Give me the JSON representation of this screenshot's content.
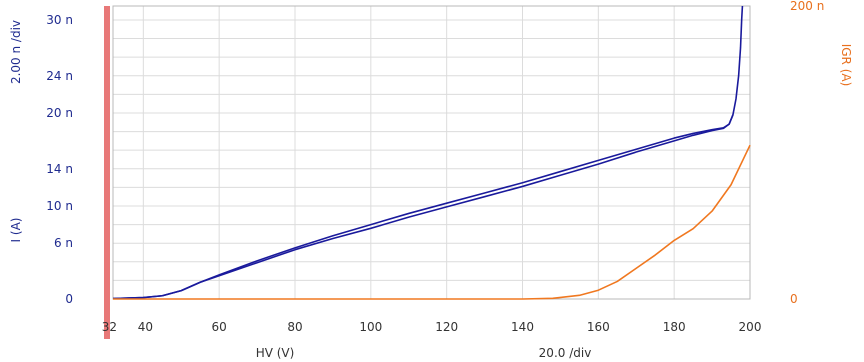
{
  "chart_data": {
    "type": "line",
    "title": "",
    "xlabel": "HV (V)",
    "x_div_label": "20.0  /div",
    "xlim": [
      32,
      200
    ],
    "x_ticks": [
      32,
      40,
      60,
      80,
      100,
      120,
      140,
      160,
      180,
      200
    ],
    "ylabel_left": "I (A)",
    "ylabel_left_div": "2.00 n /div",
    "ylim_left": [
      0,
      31.5
    ],
    "y_ticks_left": [
      {
        "value": 0,
        "label": "0"
      },
      {
        "value": 6,
        "label": "6 n"
      },
      {
        "value": 10,
        "label": "10 n"
      },
      {
        "value": 14,
        "label": "14 n"
      },
      {
        "value": 20,
        "label": "20 n"
      },
      {
        "value": 24,
        "label": "24 n"
      },
      {
        "value": 30,
        "label": "30 n"
      }
    ],
    "ylabel_right": "IGR (A)",
    "ylim_right": [
      0,
      200
    ],
    "y_ticks_right": [
      {
        "value": 0,
        "label": "0"
      },
      {
        "value": 200,
        "label": "200 n"
      }
    ],
    "grid": true,
    "series": [
      {
        "axis": "left",
        "color": "#1a1a9c",
        "x": [
          32,
          40,
          45,
          50,
          55,
          60,
          70,
          80,
          90,
          100,
          110,
          120,
          130,
          140,
          150,
          160,
          170,
          180,
          185,
          190,
          193,
          194.5,
          195.5,
          196.3,
          197,
          197.5,
          197.8,
          198
        ],
        "y": [
          0.05,
          0.15,
          0.35,
          0.9,
          1.8,
          2.6,
          4.1,
          5.5,
          6.8,
          8.0,
          9.2,
          10.3,
          11.4,
          12.5,
          13.7,
          14.9,
          16.1,
          17.3,
          17.8,
          18.2,
          18.4,
          18.8,
          19.8,
          21.5,
          24.0,
          27.0,
          30.0,
          31.5
        ]
      },
      {
        "axis": "left",
        "color": "#1a1a9c",
        "x": [
          32,
          40,
          45,
          50,
          55,
          60,
          70,
          80,
          90,
          100,
          110,
          120,
          130,
          140,
          150,
          160,
          170,
          180,
          185,
          190,
          193,
          194.5,
          195.5
        ],
        "y": [
          0.05,
          0.15,
          0.35,
          0.9,
          1.8,
          2.5,
          3.9,
          5.3,
          6.5,
          7.6,
          8.8,
          9.9,
          11.0,
          12.1,
          13.3,
          14.5,
          15.8,
          17.0,
          17.6,
          18.1,
          18.35,
          18.8,
          19.8
        ]
      },
      {
        "axis": "right",
        "color": "#f07820",
        "x": [
          32,
          60,
          100,
          140,
          148,
          155,
          160,
          165,
          170,
          175,
          180,
          185,
          190,
          195,
          200
        ],
        "y": [
          0,
          0,
          0,
          0,
          0.5,
          2.5,
          6,
          12,
          21,
          30,
          40,
          48,
          60,
          78,
          105
        ]
      }
    ]
  }
}
